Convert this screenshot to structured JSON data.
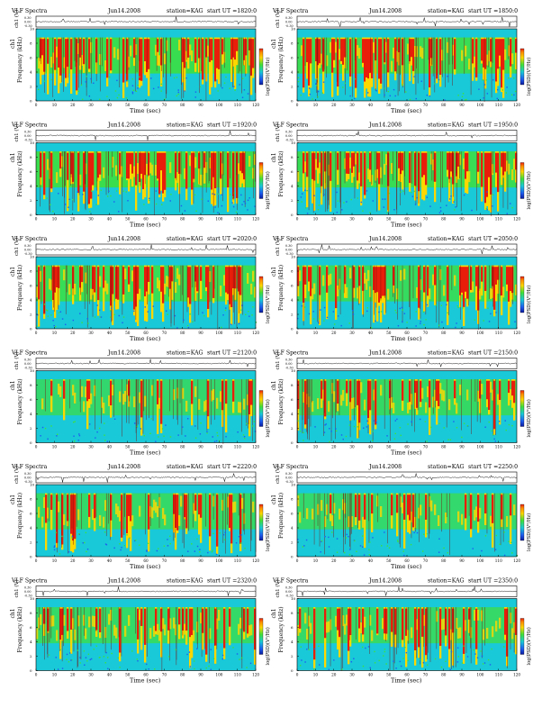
{
  "common": {
    "spectra_label": "VLF Spectra",
    "station": "station=KAG",
    "channel_label": "ch1 (V)",
    "trace_ticks": [
      "0.30",
      "0.00",
      "-0.30"
    ],
    "freq_label": "Frequency (kHz)",
    "channel_name": "ch1",
    "time_label": "Time (sec)",
    "colorbar_label": "log(PSD)(V²/Hz)",
    "y_ticks": [
      "0",
      "2",
      "4",
      "6",
      "8",
      "10"
    ],
    "x_ticks": [
      "0",
      "10",
      "20",
      "30",
      "40",
      "50",
      "60",
      "70",
      "80",
      "90",
      "100",
      "110",
      "120"
    ]
  },
  "panels": [
    {
      "date": "Jun14.2008",
      "start": "start UT =1820:0",
      "activity": 0.78
    },
    {
      "date": "Jun14.2008",
      "start": "start UT =1850:0",
      "activity": 0.72
    },
    {
      "date": "Jun14.2008",
      "start": "start UT =1920:0",
      "activity": 0.8
    },
    {
      "date": "Jun14.2008",
      "start": "start UT =1950:0",
      "activity": 0.7
    },
    {
      "date": "Jun14.2008",
      "start": "start UT =2020:0",
      "activity": 0.66
    },
    {
      "date": "Jun14.2008",
      "start": "start UT =2050:0",
      "activity": 0.55
    },
    {
      "date": "Jun14.2008",
      "start": "start UT =2120:0",
      "activity": 0.3
    },
    {
      "date": "Jun14.2008",
      "start": "start UT =2150:0",
      "activity": 0.45
    },
    {
      "date": "Jun14.2008",
      "start": "start UT =2220:0",
      "activity": 0.38
    },
    {
      "date": "Jun14.2008",
      "start": "start UT =2250:0",
      "activity": 0.32
    },
    {
      "date": "Jun14.2008",
      "start": "start UT =2320:0",
      "activity": 0.42
    },
    {
      "date": "Jun14.2008",
      "start": "start UT =2350:0",
      "activity": 0.4
    }
  ],
  "colors": {
    "high": "#e81e0a",
    "mid": "#ffd700",
    "low_mid": "#3fe03a",
    "low": "#19c9d8",
    "lowest": "#1e5cf0",
    "floor": "#0a1a9e"
  },
  "chart_data": {
    "type": "heatmap",
    "x": {
      "label": "Time (sec)",
      "range": [
        0,
        120
      ]
    },
    "y": {
      "label": "Frequency (kHz)",
      "range": [
        0,
        10
      ]
    },
    "colorbar": {
      "label": "log(PSD)(V²/Hz)"
    },
    "trace": {
      "label": "ch1 (V)",
      "range": [
        -0.3,
        0.3
      ]
    },
    "panel_count": 12,
    "layout": "6 rows x 2 columns"
  }
}
